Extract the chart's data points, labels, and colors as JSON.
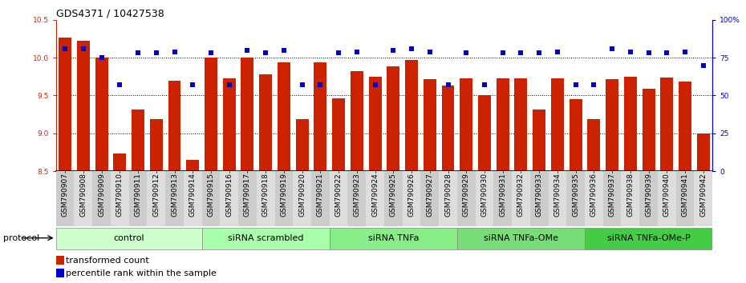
{
  "title": "GDS4371 / 10427538",
  "samples": [
    "GSM790907",
    "GSM790908",
    "GSM790909",
    "GSM790910",
    "GSM790911",
    "GSM790912",
    "GSM790913",
    "GSM790914",
    "GSM790915",
    "GSM790916",
    "GSM790917",
    "GSM790918",
    "GSM790919",
    "GSM790920",
    "GSM790921",
    "GSM790922",
    "GSM790923",
    "GSM790924",
    "GSM790925",
    "GSM790926",
    "GSM790927",
    "GSM790928",
    "GSM790929",
    "GSM790930",
    "GSM790931",
    "GSM790932",
    "GSM790933",
    "GSM790934",
    "GSM790935",
    "GSM790936",
    "GSM790937",
    "GSM790938",
    "GSM790939",
    "GSM790940",
    "GSM790941",
    "GSM790942"
  ],
  "bar_values": [
    10.27,
    10.22,
    10.0,
    8.73,
    9.32,
    9.19,
    9.69,
    8.65,
    10.0,
    9.73,
    10.0,
    9.78,
    9.94,
    9.19,
    9.94,
    9.46,
    9.82,
    9.75,
    9.88,
    9.97,
    9.72,
    9.63,
    9.73,
    9.5,
    9.73,
    9.73,
    9.32,
    9.73,
    9.45,
    9.19,
    9.72,
    9.75,
    9.59,
    9.74,
    9.68,
    9.0
  ],
  "percentile_values": [
    81,
    81,
    75,
    57,
    78,
    78,
    79,
    57,
    78,
    57,
    80,
    78,
    80,
    57,
    57,
    78,
    79,
    57,
    80,
    81,
    79,
    57,
    78,
    57,
    78,
    78,
    78,
    79,
    57,
    57,
    81,
    79,
    78,
    78,
    79,
    70
  ],
  "bar_color": "#CC2200",
  "dot_color": "#0000CC",
  "ylim_left": [
    8.5,
    10.5
  ],
  "ylim_right": [
    0,
    100
  ],
  "yticks_left": [
    8.5,
    9.0,
    9.5,
    10.0,
    10.5
  ],
  "yticks_right": [
    0,
    25,
    50,
    75,
    100
  ],
  "groups": [
    {
      "label": "control",
      "start": 0,
      "end": 7
    },
    {
      "label": "siRNA scrambled",
      "start": 8,
      "end": 14
    },
    {
      "label": "siRNA TNFa",
      "start": 15,
      "end": 21
    },
    {
      "label": "siRNA TNFa-OMe",
      "start": 22,
      "end": 28
    },
    {
      "label": "siRNA TNFa-OMe-P",
      "start": 29,
      "end": 35
    }
  ],
  "group_colors": [
    "#CCFFCC",
    "#AAFFAA",
    "#88EE88",
    "#77DD77",
    "#44CC44"
  ],
  "legend_items": [
    {
      "label": "transformed count",
      "color": "#CC2200"
    },
    {
      "label": "percentile rank within the sample",
      "color": "#0000CC"
    }
  ],
  "protocol_label": "protocol",
  "tick_fontsize": 6.5,
  "label_fontsize": 8,
  "group_fontsize": 8
}
